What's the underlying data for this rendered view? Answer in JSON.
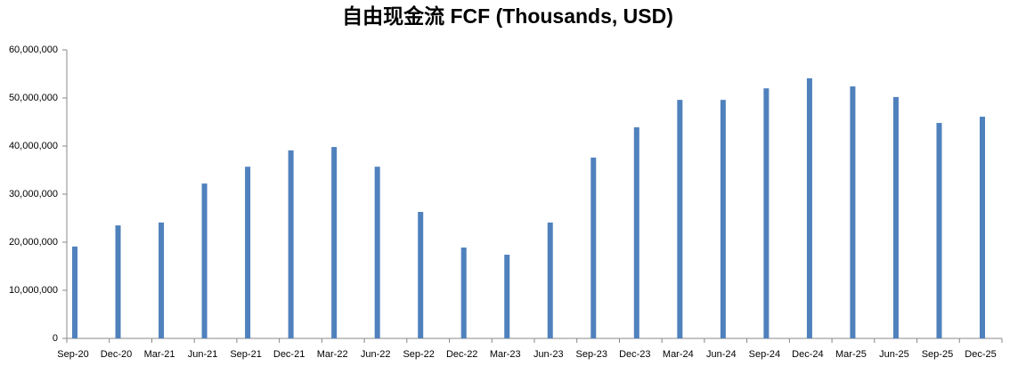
{
  "chart_data": {
    "type": "bar",
    "title": "自由现金流 FCF (Thousands, USD)",
    "categories": [
      "Sep-20",
      "Dec-20",
      "Mar-21",
      "Jun-21",
      "Sep-21",
      "Dec-21",
      "Mar-22",
      "Jun-22",
      "Sep-22",
      "Dec-22",
      "Mar-23",
      "Jun-23",
      "Sep-23",
      "Dec-23",
      "Mar-24",
      "Jun-24",
      "Sep-24",
      "Dec-24",
      "Mar-25",
      "Jun-25",
      "Sep-25",
      "Dec-25"
    ],
    "values": [
      19100000,
      23500000,
      24100000,
      32200000,
      35700000,
      39100000,
      39800000,
      35700000,
      26300000,
      18900000,
      17400000,
      24100000,
      37600000,
      43900000,
      49600000,
      49600000,
      52000000,
      54100000,
      52400000,
      50200000,
      44800000,
      46100000
    ],
    "color": "#4f81bd",
    "ylim": [
      0,
      60000000
    ],
    "yticks": [
      0,
      {
        "value": 10000000,
        "label": "10,000,000"
      },
      {
        "value": 20000000,
        "label": "20,000,000"
      },
      {
        "value": 30000000,
        "label": "30,000,000"
      },
      {
        "value": 40000000,
        "label": "40,000,000"
      },
      {
        "value": 50000000,
        "label": "50,000,000"
      },
      {
        "value": 60000000,
        "label": "60,000,000"
      }
    ],
    "grid": false
  }
}
